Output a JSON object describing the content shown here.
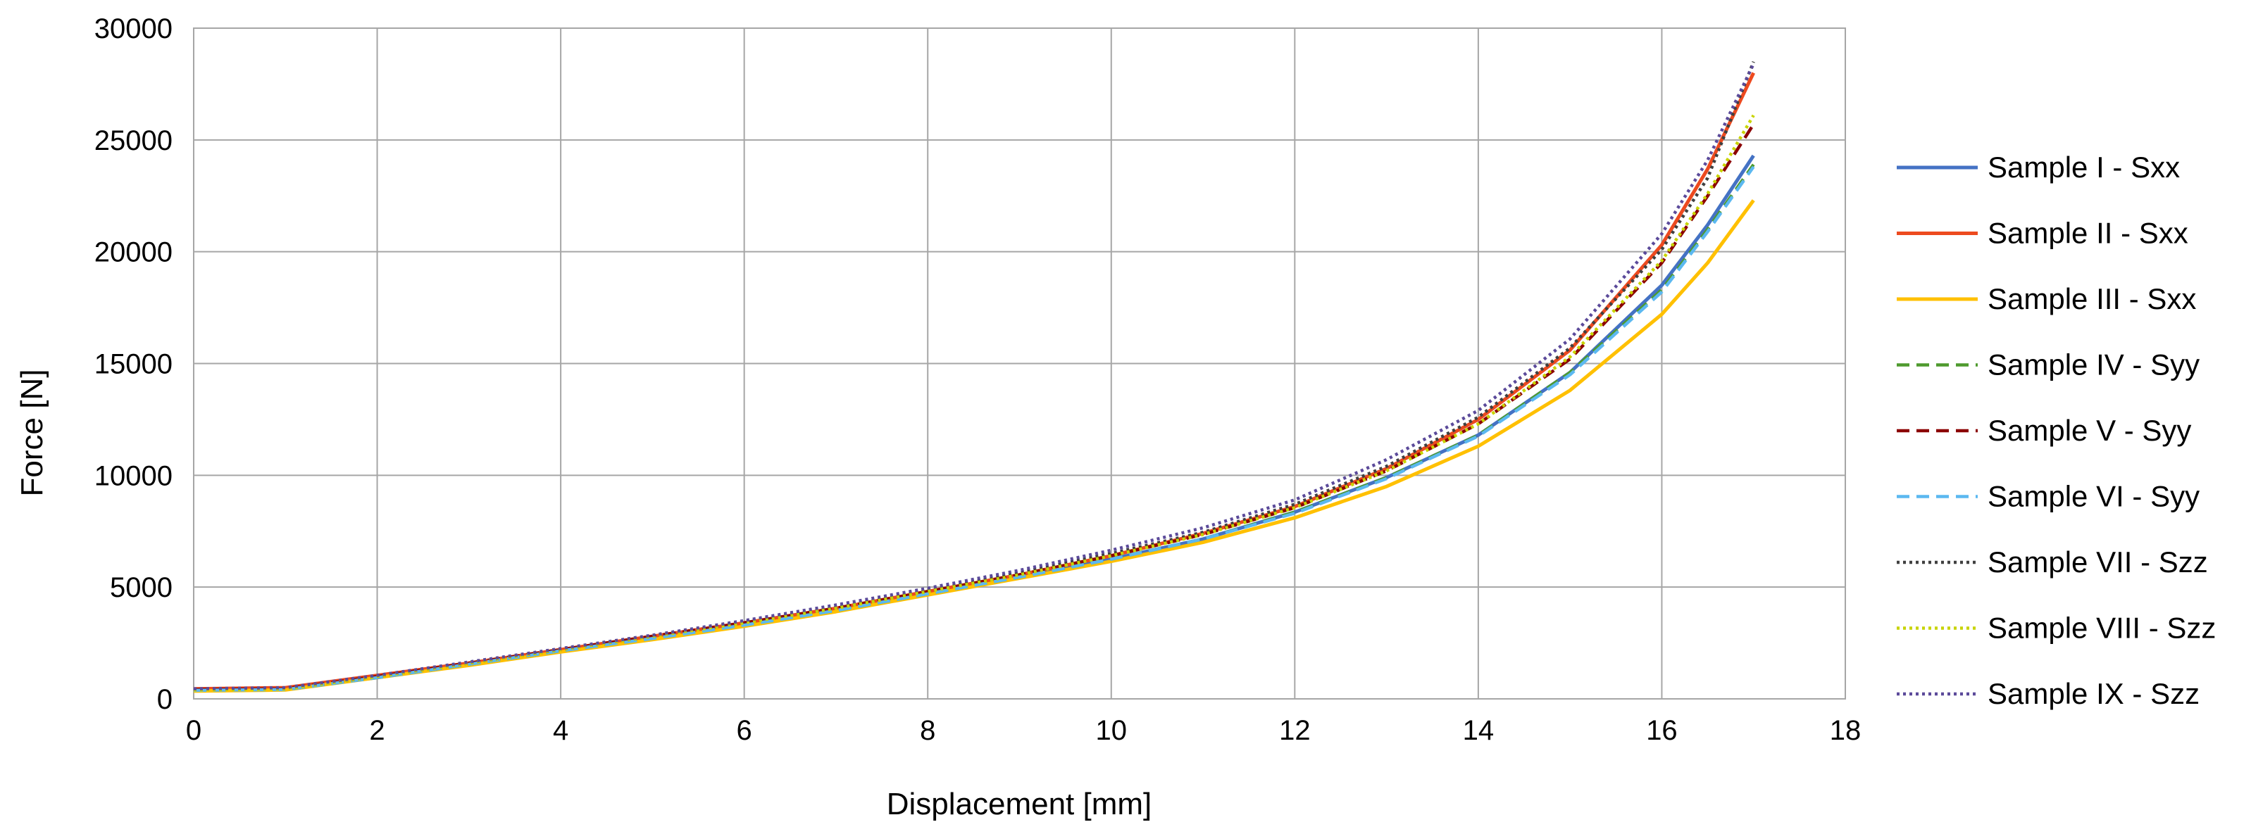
{
  "chart_data": {
    "type": "line",
    "title": "",
    "xlabel": "Displacement  [mm]",
    "ylabel": "Force [N]",
    "xlim": [
      0,
      18
    ],
    "ylim": [
      0,
      30000
    ],
    "xticks": [
      "0",
      "2",
      "4",
      "6",
      "8",
      "10",
      "12",
      "14",
      "16",
      "18"
    ],
    "yticks": [
      "0",
      "5000",
      "10000",
      "15000",
      "20000",
      "25000",
      "30000"
    ],
    "grid": true,
    "legend_position": "right",
    "x": [
      0,
      1,
      2,
      3,
      4,
      5,
      6,
      7,
      8,
      9,
      10,
      11,
      12,
      13,
      14,
      15,
      16,
      16.5,
      17
    ],
    "series": [
      {
        "name": "Sample I  - Sxx",
        "color": "#4472C4",
        "style": "solid",
        "values": [
          400,
          450,
          950,
          1550,
          2150,
          2700,
          3300,
          3950,
          4700,
          5450,
          6250,
          7150,
          8350,
          9900,
          11800,
          14600,
          18500,
          21200,
          24300
        ]
      },
      {
        "name": "Sample II - Sxx",
        "color": "#ED4A1F",
        "style": "solid",
        "values": [
          450,
          500,
          1050,
          1600,
          2200,
          2800,
          3400,
          4050,
          4800,
          5550,
          6400,
          7400,
          8600,
          10300,
          12500,
          15600,
          20300,
          23700,
          28000
        ]
      },
      {
        "name": "Sample III - Sxx",
        "color": "#FFC000",
        "style": "solid",
        "values": [
          350,
          400,
          950,
          1500,
          2100,
          2650,
          3250,
          3900,
          4650,
          5400,
          6150,
          7000,
          8100,
          9500,
          11300,
          13800,
          17200,
          19500,
          22300
        ]
      },
      {
        "name": "Sample IV - Syy",
        "color": "#4E9A2E",
        "style": "dashed",
        "values": [
          400,
          420,
          950,
          1550,
          2150,
          2750,
          3350,
          3950,
          4700,
          5450,
          6250,
          7150,
          8350,
          9900,
          11800,
          14600,
          18300,
          21000,
          23900
        ]
      },
      {
        "name": "Sample V - Syy",
        "color": "#8B0000",
        "style": "dashed",
        "values": [
          420,
          450,
          1000,
          1600,
          2200,
          2800,
          3400,
          4050,
          4800,
          5550,
          6400,
          7350,
          8550,
          10200,
          12300,
          15200,
          19500,
          22500,
          25700
        ]
      },
      {
        "name": "Sample VI - Syy",
        "color": "#5BB8F0",
        "style": "dashed",
        "values": [
          380,
          420,
          950,
          1550,
          2150,
          2700,
          3300,
          3950,
          4700,
          5450,
          6250,
          7150,
          8300,
          9850,
          11750,
          14500,
          18200,
          20900,
          23800
        ]
      },
      {
        "name": "Sample VII  - Szz",
        "color": "#404040",
        "style": "dotted",
        "values": [
          420,
          450,
          1000,
          1600,
          2200,
          2800,
          3450,
          4100,
          4850,
          5650,
          6500,
          7450,
          8700,
          10400,
          12600,
          15700,
          20100,
          23300,
          28500
        ]
      },
      {
        "name": "Sample VIII - Szz",
        "color": "#C8D400",
        "style": "dotted",
        "values": [
          400,
          440,
          1000,
          1600,
          2200,
          2800,
          3400,
          4050,
          4800,
          5550,
          6400,
          7350,
          8550,
          10200,
          12300,
          15300,
          19600,
          22600,
          26100
        ]
      },
      {
        "name": "Sample IX - Szz",
        "color": "#5B4A9A",
        "style": "dotted",
        "values": [
          450,
          500,
          1050,
          1650,
          2250,
          2850,
          3500,
          4200,
          4950,
          5750,
          6650,
          7650,
          8900,
          10700,
          12900,
          16100,
          20800,
          24100,
          28400
        ]
      }
    ]
  }
}
